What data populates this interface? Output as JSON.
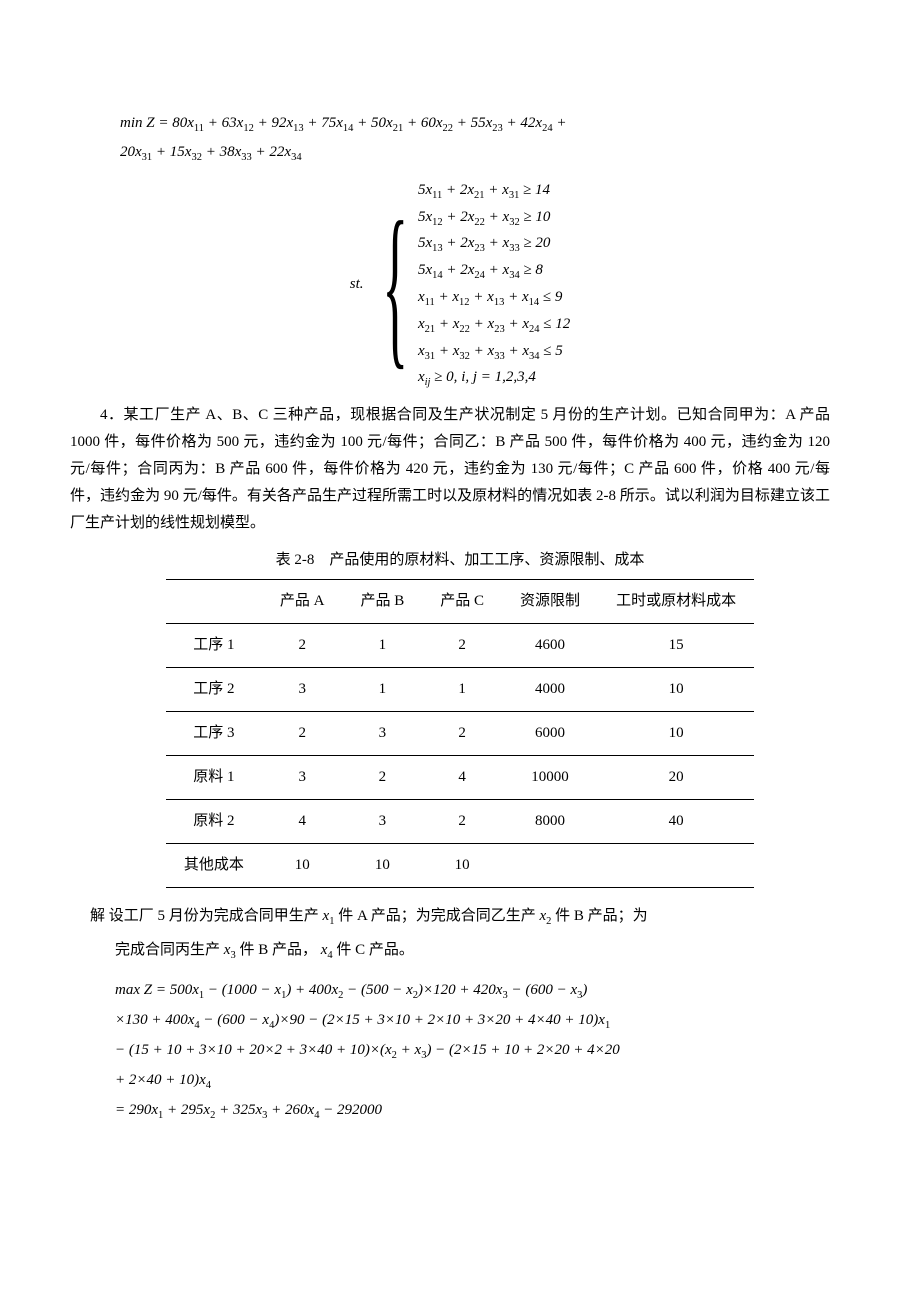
{
  "objective1": {
    "line1": "min Z = 80x₁₁ + 63x₁₂ + 92x₁₃ + 75x₁₄ + 50x₂₁ + 60x₂₂ + 55x₂₃ + 42x₂₄ +",
    "line2": "20x₃₁ + 15x₃₂ + 38x₃₃ + 22x₃₄"
  },
  "constraints1": {
    "st": "st.",
    "lines": [
      "5x₁₁ + 2x₂₁ + x₃₁ ≥ 14",
      "5x₁₂ + 2x₂₂ + x₃₂ ≥ 10",
      "5x₁₃ + 2x₂₃ + x₃₃ ≥ 20",
      "5x₁₄ + 2x₂₄ + x₃₄ ≥ 8",
      "x₁₁ + x₁₂ + x₁₃ + x₁₄ ≤ 9",
      "x₂₁ + x₂₂ + x₂₃ + x₂₄ ≤ 12",
      "x₃₁ + x₃₂ + x₃₃ + x₃₄ ≤ 5",
      "xᵢⱼ ≥ 0, i, j = 1,2,3,4"
    ]
  },
  "problem4": {
    "text": "4．某工厂生产 A、B、C 三种产品，现根据合同及生产状况制定 5 月份的生产计划。已知合同甲为：A 产品 1000 件，每件价格为 500 元，违约金为 100 元/每件；合同乙：B 产品 500 件，每件价格为 400 元，违约金为 120 元/每件；合同丙为：B 产品 600 件，每件价格为 420 元，违约金为 130 元/每件；C 产品 600 件，价格 400 元/每件，违约金为 90 元/每件。有关各产品生产过程所需工时以及原材料的情况如表 2-8 所示。试以利润为目标建立该工厂生产计划的线性规划模型。"
  },
  "table": {
    "caption": "表 2-8　产品使用的原材料、加工工序、资源限制、成本",
    "headers": [
      "",
      "产品 A",
      "产品 B",
      "产品 C",
      "资源限制",
      "工时或原材料成本"
    ],
    "rows": [
      [
        "工序 1",
        "2",
        "1",
        "2",
        "4600",
        "15"
      ],
      [
        "工序 2",
        "3",
        "1",
        "1",
        "4000",
        "10"
      ],
      [
        "工序 3",
        "2",
        "3",
        "2",
        "6000",
        "10"
      ],
      [
        "原料 1",
        "3",
        "2",
        "4",
        "10000",
        "20"
      ],
      [
        "原料 2",
        "4",
        "3",
        "2",
        "8000",
        "40"
      ],
      [
        "其他成本",
        "10",
        "10",
        "10",
        "",
        ""
      ]
    ]
  },
  "solution": {
    "intro1": "解 设工厂 5 月份为完成合同甲生产 x₁ 件 A 产品；为完成合同乙生产 x₂ 件 B 产品；为",
    "intro2": "完成合同丙生产 x₃ 件  B 产品， x₄ 件 C 产品。"
  },
  "objective2": {
    "lines": [
      "max Z = 500x₁ − (1000 − x₁) + 400x₂ − (500 − x₂)×120 + 420x₃ − (600 − x₃)",
      "×130 + 400x₄ − (600 − x₄)×90 − (2×15 + 3×10 + 2×10 + 3×20 + 4×40 +10)x₁",
      "− (15 + 10 + 3×10 + 20×2 + 3×40 +10)×(x₂ + x₃) − (2×15 + 10 + 2×20 + 4×20",
      "+ 2×40 + 10)x₄",
      "= 290x₁ + 295x₂ + 325x₃ + 260x₄ − 292000"
    ]
  },
  "styling": {
    "background_color": "#ffffff",
    "text_color": "#000000",
    "body_fontsize": 15,
    "math_font": "Times New Roman",
    "chinese_font": "SimSun"
  }
}
